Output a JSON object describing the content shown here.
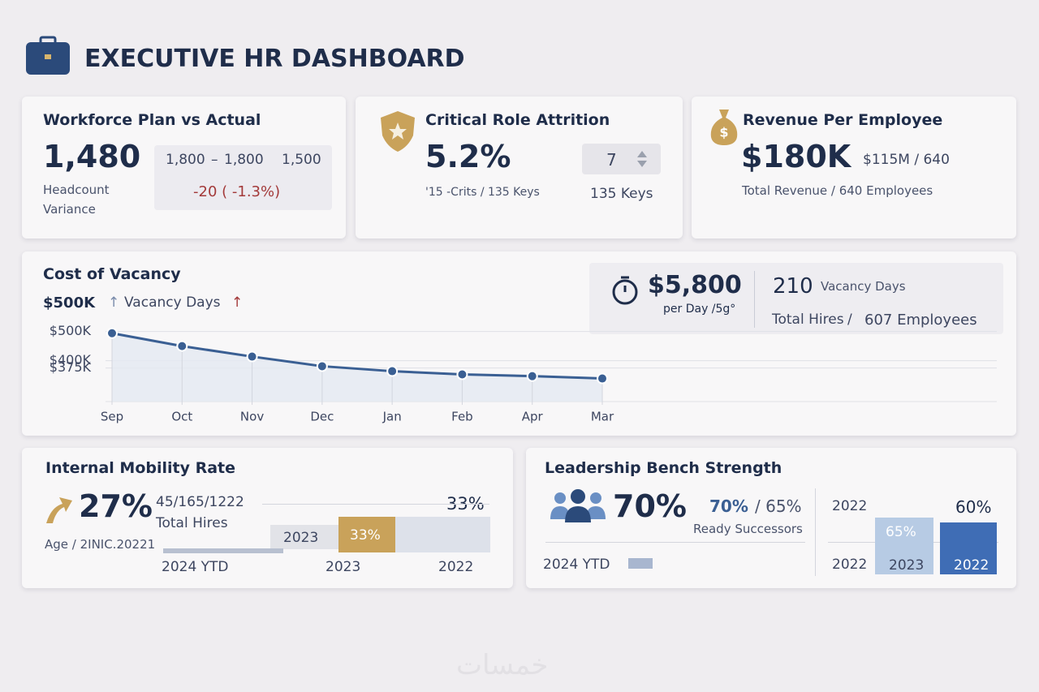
{
  "header": {
    "title": "EXECUTIVE HR DASHBOARD"
  },
  "workforce": {
    "title": "Workforce Plan vs Actual",
    "value": "1,480",
    "label_lines": [
      "Headcount",
      "Variance"
    ],
    "plan": [
      "1,800",
      "–",
      "1,800",
      "1,500"
    ],
    "variance": "-20 ( -1.3%)"
  },
  "attrition": {
    "title": "Critical Role Attrition",
    "value": "5.2%",
    "note": "'15 -Crits / 135 Keys",
    "stepper": "7",
    "keys": "135 Keys"
  },
  "revenue": {
    "title": "Revenue Per Employee",
    "value": "$180K",
    "ratio": "$115M / 640",
    "note": "Total Revenue  /  640 Employees"
  },
  "vacancy": {
    "title": "Cost of Vacancy",
    "summary": "$500K",
    "legend": "Vacancy Days",
    "per_day": "$5,800",
    "per_day_label": "per Day /5g°",
    "days": "210",
    "days_label": "Vacancy Days",
    "hires": "Total Hires",
    "hires_sep": "/",
    "employees": "607 Employees",
    "chart": {
      "type": "line",
      "x": [
        "Sep",
        "Oct",
        "Nov",
        "Dec",
        "Jan",
        "Feb",
        "Apr",
        "Mar"
      ],
      "values": [
        494000,
        450000,
        414000,
        381000,
        364000,
        353000,
        347000,
        339000
      ],
      "color": "#3a5f93",
      "ylim": [
        260000,
        510000
      ],
      "yticks": [
        {
          "value": 500000,
          "label": "$500K"
        },
        {
          "value": 400000,
          "label": "$400K"
        },
        {
          "value": 375000,
          "label": "$375K"
        }
      ],
      "grid": true
    }
  },
  "mobility": {
    "title": "Internal Mobility Rate",
    "value": "27%",
    "ratio": "45/165/1222",
    "hires": "Total Hires",
    "age": "Age / 2INIC.20221",
    "top_value": "33%",
    "bar_labels": [
      "2023",
      "33%"
    ],
    "x_labels": [
      "2024 YTD",
      "2023",
      "2022"
    ]
  },
  "bench": {
    "title": "Leadership Bench Strength",
    "value": "70%",
    "compare": "70%",
    "compare_prev": "/ 65%",
    "ready": "Ready Successors",
    "ytd": "2024 YTD",
    "right_top": [
      "2022",
      "60%"
    ],
    "bar_value": "65%",
    "right_bottom": [
      "2022",
      "2023",
      "2022"
    ]
  },
  "watermark": "خمسات"
}
